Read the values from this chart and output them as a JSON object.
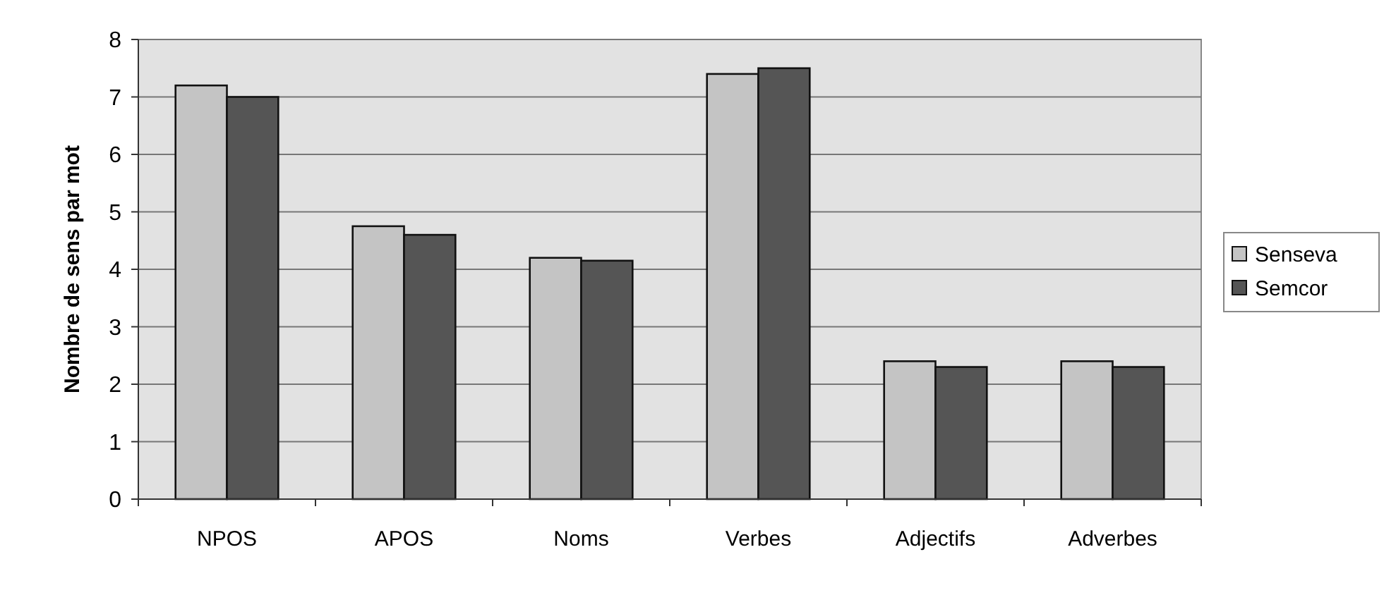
{
  "chart_data": {
    "type": "bar",
    "ylabel": "Nombre de sens par mot",
    "categories": [
      "NPOS",
      "APOS",
      "Noms",
      "Verbes",
      "Adjectifs",
      "Adverbes"
    ],
    "series": [
      {
        "name": "Senseva",
        "color": "#c4c4c4",
        "values": [
          7.2,
          4.75,
          4.2,
          7.4,
          2.4,
          2.4
        ]
      },
      {
        "name": "Semcor",
        "color": "#555555",
        "values": [
          7.0,
          4.6,
          4.15,
          7.5,
          2.3,
          2.3
        ]
      }
    ],
    "ylim": [
      0,
      8
    ],
    "yticks": [
      0,
      1,
      2,
      3,
      4,
      5,
      6,
      7,
      8
    ],
    "grid": "y",
    "legend": "right"
  }
}
